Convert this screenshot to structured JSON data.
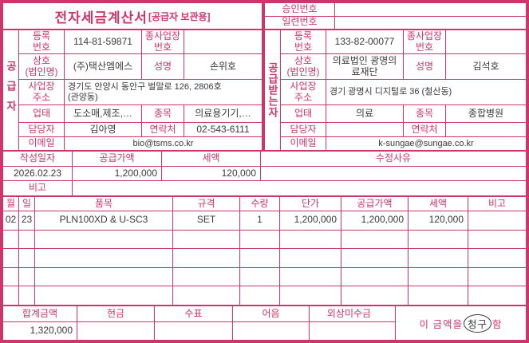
{
  "colors": {
    "accent": "#ce356b",
    "ink": "#3a3a3a"
  },
  "header": {
    "title": "전자세금계산서",
    "title_suffix": "[공급자 보관용]",
    "approval_label": "승인번호",
    "approval_value": "",
    "serial_label": "일련번호",
    "serial_value": ""
  },
  "labels": {
    "reg": "등록\n번호",
    "sub_biz": "종사업장\n번호",
    "company": "상호\n(법인명)",
    "ceo": "성명",
    "address": "사업장\n주소",
    "biz_type": "업태",
    "biz_item": "종목",
    "manager": "담당자",
    "contact": "연락처",
    "email": "이메일"
  },
  "supplier": {
    "side": "공급자",
    "reg_no": "114-81-59871",
    "sub_biz_no": "",
    "company": "(주)택산엠에스",
    "ceo": "손위호",
    "address": "경기도 안양시 동안구 벌말로 126, 2806호\n(관양동)",
    "biz_type": "도소매,제조,…",
    "biz_item": "의료용기기,…",
    "manager": "김아영",
    "contact": "02-543-6111",
    "email": "bio@tsms.co.kr"
  },
  "buyer": {
    "side": "공급받는자",
    "reg_no": "133-82-00077",
    "sub_biz_no": "",
    "company": "의료법인 광명의\n료재단",
    "ceo": "김석호",
    "address": "경기 광명시 디지털로 36 (철산동)",
    "biz_type": "의료",
    "biz_item": "종합병원",
    "manager": "",
    "contact": "",
    "email": "k-sungae@sungae.co.kr"
  },
  "summary": {
    "date_label": "작성일자",
    "date": "2026.02.23",
    "supply_label": "공급가액",
    "supply": "1,200,000",
    "tax_label": "세액",
    "tax": "120,000",
    "reason_label": "수정사유",
    "reason": "",
    "note_label": "비고",
    "note": ""
  },
  "items": {
    "headers": [
      "월",
      "일",
      "품목",
      "규격",
      "수량",
      "단가",
      "공급가액",
      "세액",
      "비고"
    ],
    "row": {
      "month": "02",
      "day": "23",
      "name": "PLN100XD & U-SC3",
      "spec": "SET",
      "qty": "1",
      "unit_price": "1,200,000",
      "supply": "1,200,000",
      "tax": "120,000",
      "note": ""
    }
  },
  "totals": {
    "total_label": "합계금액",
    "total": "1,320,000",
    "cash_label": "현금",
    "cash": "",
    "check_label": "수표",
    "check": "",
    "bill_label": "어음",
    "bill": "",
    "receivable_label": "외상미수금",
    "receivable": "",
    "claim_prefix": "이 금액을 ",
    "claim_circled": "청구",
    "claim_suffix": "함"
  }
}
